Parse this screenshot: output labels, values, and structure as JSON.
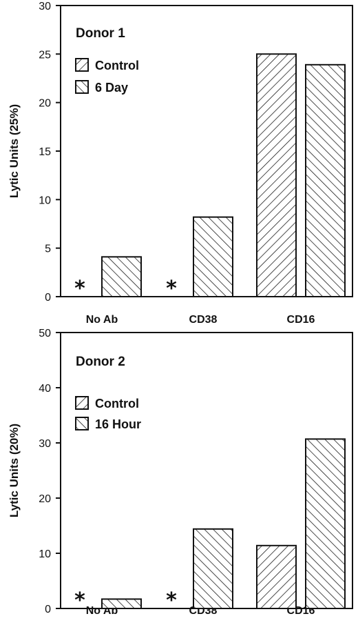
{
  "chart_data": [
    {
      "type": "bar",
      "title": "Donor 1",
      "ylabel": "Lytic Units (25%)",
      "ylim": [
        0,
        30
      ],
      "yticks": [
        "0",
        "5",
        "10",
        "15",
        "20",
        "25",
        "30"
      ],
      "categories": [
        "No Ab",
        "CD38",
        "CD16"
      ],
      "series": [
        {
          "name": "Control",
          "values": [
            0,
            0,
            25
          ],
          "hatch": "forward"
        },
        {
          "name": "6 Day",
          "values": [
            4.1,
            8.2,
            23.9
          ],
          "hatch": "back"
        }
      ],
      "annotations": [
        {
          "category": "No Ab",
          "text": "*"
        },
        {
          "category": "CD38",
          "text": "*"
        }
      ],
      "grid": false,
      "legend": "top-left"
    },
    {
      "type": "bar",
      "title": "Donor 2",
      "ylabel": "Lytic Units (20%)",
      "ylim": [
        0,
        50
      ],
      "yticks": [
        "0",
        "10",
        "20",
        "30",
        "40",
        "50"
      ],
      "categories": [
        "No Ab",
        "CD38",
        "CD16"
      ],
      "series": [
        {
          "name": "Control",
          "values": [
            0,
            0,
            11.4
          ],
          "hatch": "forward"
        },
        {
          "name": "16 Hour",
          "values": [
            1.7,
            14.4,
            30.7
          ],
          "hatch": "back"
        }
      ],
      "annotations": [
        {
          "category": "No Ab",
          "text": "*"
        },
        {
          "category": "CD38",
          "text": "*"
        }
      ],
      "grid": false,
      "legend": "top-left"
    }
  ],
  "colors": {
    "ink": "#111111",
    "background": "#ffffff"
  }
}
